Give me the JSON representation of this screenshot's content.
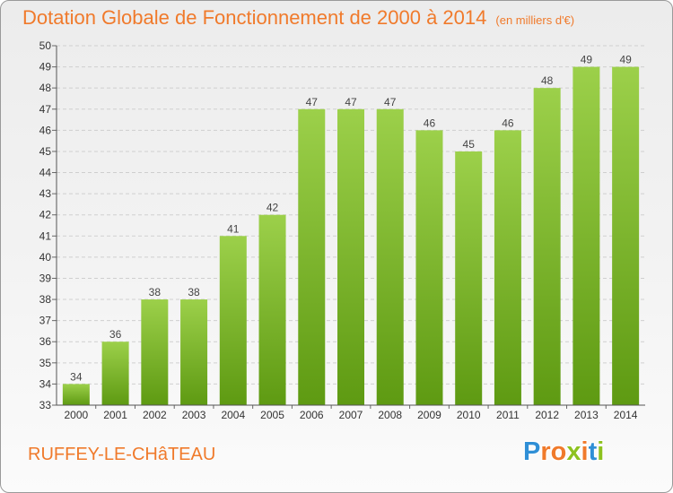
{
  "chart_data": {
    "type": "bar",
    "title": "Dotation Globale de Fonctionnement de 2000 à 2014",
    "unit": "(en milliers d'€)",
    "categories": [
      "2000",
      "2001",
      "2002",
      "2003",
      "2004",
      "2005",
      "2006",
      "2007",
      "2008",
      "2009",
      "2010",
      "2011",
      "2012",
      "2013",
      "2014"
    ],
    "values": [
      34,
      36,
      38,
      38,
      41,
      42,
      47,
      47,
      47,
      46,
      45,
      46,
      48,
      49,
      49
    ],
    "ylim": [
      33,
      50
    ],
    "yticks": [
      33,
      34,
      35,
      36,
      37,
      38,
      39,
      40,
      41,
      42,
      43,
      44,
      45,
      46,
      47,
      48,
      49,
      50
    ],
    "xlabel": "",
    "ylabel": "",
    "grid": true,
    "bar_color": "#7ab52c"
  },
  "footer": {
    "city": "RUFFEY-LE-CHâTEAU",
    "logo_letters": [
      {
        "char": "P",
        "color": "#2f8fd6"
      },
      {
        "char": "r",
        "color": "#f07a2b"
      },
      {
        "char": "o",
        "color": "#f07a2b"
      },
      {
        "char": "x",
        "color": "#8dc21f"
      },
      {
        "char": "i",
        "color": "#f07a2b"
      },
      {
        "char": "t",
        "color": "#2f8fd6"
      },
      {
        "char": "i",
        "color": "#8dc21f"
      }
    ]
  }
}
